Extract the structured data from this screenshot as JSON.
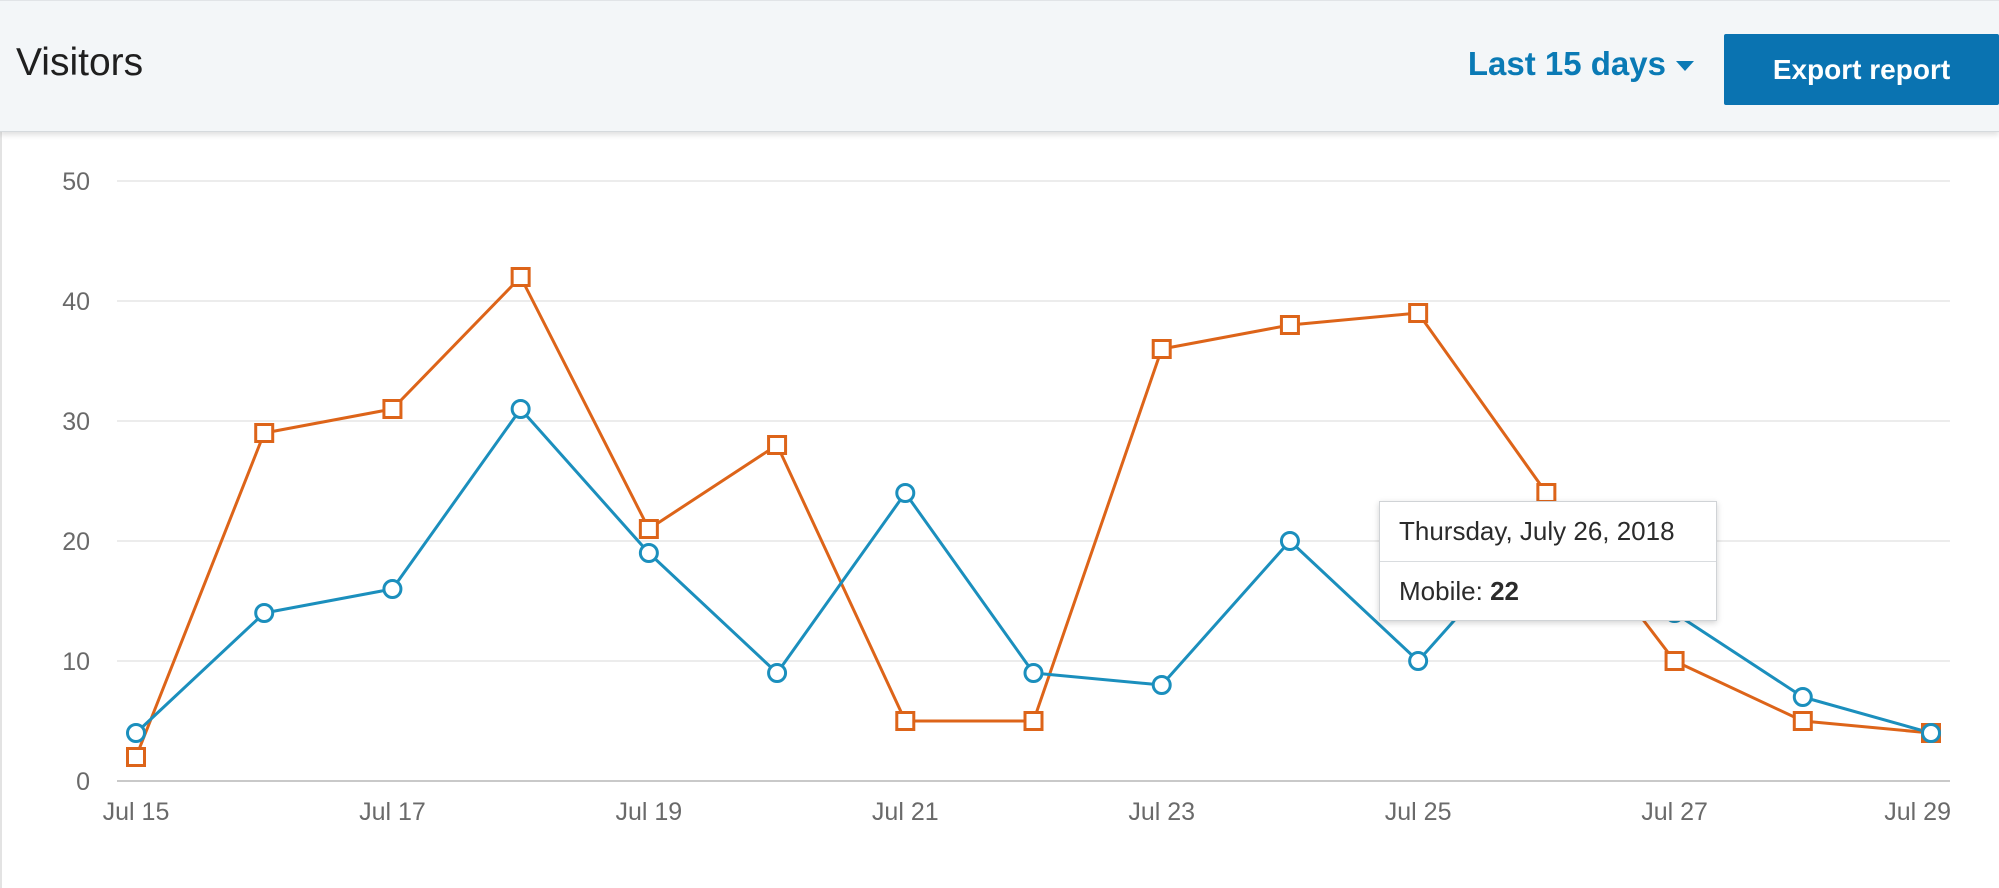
{
  "header": {
    "title": "Visitors",
    "range_label": "Last 15 days",
    "export_label": "Export report"
  },
  "tooltip": {
    "date": "Thursday, July 26, 2018",
    "series_label": "Mobile:",
    "value": "22"
  },
  "colors": {
    "blue_series": "#1b8fbd",
    "orange_series": "#dd6419",
    "grid": "#e1e1e1",
    "axis_text": "#6a6a6a",
    "accent": "#0a73b1"
  },
  "chart_data": {
    "type": "line",
    "x": [
      "Jul 15",
      "Jul 16",
      "Jul 17",
      "Jul 18",
      "Jul 19",
      "Jul 20",
      "Jul 21",
      "Jul 22",
      "Jul 23",
      "Jul 24",
      "Jul 25",
      "Jul 26",
      "Jul 27",
      "Jul 28",
      "Jul 29"
    ],
    "x_tick_labels": [
      "Jul 15",
      "Jul 17",
      "Jul 19",
      "Jul 21",
      "Jul 23",
      "Jul 25",
      "Jul 27",
      "Jul 29"
    ],
    "y_ticks": [
      0,
      10,
      20,
      30,
      40,
      50
    ],
    "ylim": [
      0,
      50
    ],
    "grid": true,
    "series": [
      {
        "marker": "square",
        "color": "#dd6419",
        "values": [
          2,
          29,
          31,
          42,
          21,
          28,
          5,
          5,
          36,
          38,
          39,
          24,
          10,
          5,
          4
        ]
      },
      {
        "name": "Mobile",
        "marker": "circle",
        "color": "#1b8fbd",
        "values": [
          4,
          14,
          16,
          31,
          19,
          9,
          24,
          9,
          8,
          20,
          10,
          22,
          14,
          7,
          4
        ]
      }
    ]
  }
}
